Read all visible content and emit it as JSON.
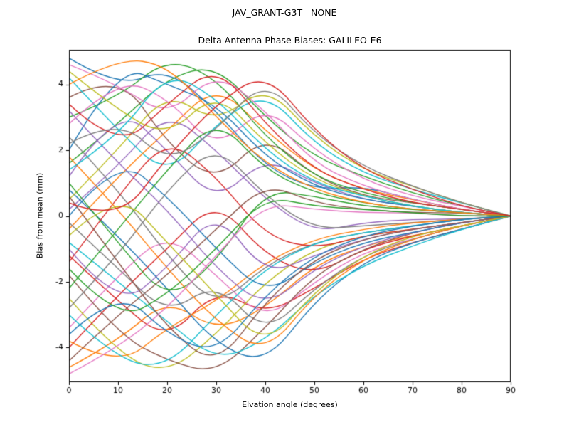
{
  "figure": {
    "suptitle": "JAV_GRANT-G3T   NONE",
    "title": "Delta Antenna Phase Biases: GALILEO-E6",
    "xlabel": "Elvation angle (degrees)",
    "ylabel": "Bias from mean (mm)"
  },
  "chart_data": {
    "type": "line",
    "suptitle": "JAV_GRANT-G3T   NONE",
    "title": "Delta Antenna Phase Biases: GALILEO-E6",
    "xlabel": "Elvation angle (degrees)",
    "ylabel": "Bias from mean (mm)",
    "xlim": [
      0,
      90
    ],
    "ylim": [
      -5.05,
      5.05
    ],
    "xticks": [
      0,
      10,
      20,
      30,
      40,
      50,
      60,
      70,
      80,
      90
    ],
    "yticks": [
      -4,
      -2,
      0,
      2,
      4
    ],
    "grid": false,
    "legend": "none",
    "x": [
      0,
      10,
      20,
      30,
      40,
      50,
      60,
      70,
      80,
      90
    ],
    "palette": [
      "#1f77b4",
      "#ff7f0e",
      "#2ca02c",
      "#d62728",
      "#9467bd",
      "#8c564b",
      "#e377c2",
      "#7f7f7f",
      "#bcbd22",
      "#17becf"
    ],
    "series": [
      [
        4.8,
        3.9,
        4.5,
        3.2,
        1.5,
        0.8,
        0.9,
        0.5,
        0.2,
        0
      ],
      [
        -4.6,
        -3.8,
        -2.5,
        -3.5,
        -2.8,
        -1.5,
        -0.9,
        -0.6,
        -0.3,
        0
      ],
      [
        1.6,
        2.8,
        4.2,
        4.6,
        3.0,
        1.8,
        1.2,
        0.7,
        0.3,
        0
      ],
      [
        -1.2,
        -2.6,
        -3.8,
        -2.2,
        -3.0,
        -2.2,
        -1.3,
        -0.8,
        -0.4,
        0
      ],
      [
        0.2,
        1.5,
        3.2,
        2.0,
        0.5,
        -0.5,
        -0.2,
        -0.1,
        -0.1,
        0
      ],
      [
        3.6,
        4.4,
        2.2,
        1.0,
        2.5,
        1.2,
        0.6,
        0.4,
        0.2,
        0
      ],
      [
        -3.4,
        -1.8,
        -0.5,
        -1.8,
        -3.2,
        -2.0,
        -1.1,
        -0.7,
        -0.3,
        0
      ],
      [
        2.4,
        0.8,
        -1.2,
        -2.8,
        -1.5,
        -0.8,
        -0.5,
        -0.3,
        -0.1,
        0
      ],
      [
        -2.5,
        -4.2,
        -4.8,
        -3.6,
        -2.0,
        -1.0,
        -0.6,
        -0.4,
        -0.2,
        0
      ],
      [
        4.2,
        2.6,
        1.2,
        2.8,
        3.8,
        2.2,
        1.3,
        0.8,
        0.4,
        0
      ],
      [
        0.8,
        -0.6,
        -2.2,
        -3.9,
        -4.5,
        -2.6,
        -1.4,
        -0.8,
        -0.4,
        0
      ],
      [
        -0.4,
        1.2,
        2.6,
        4.0,
        2.6,
        1.4,
        0.8,
        0.5,
        0.2,
        0
      ],
      [
        3.0,
        3.6,
        4.8,
        4.2,
        2.4,
        1.2,
        0.7,
        0.4,
        0.2,
        0
      ],
      [
        -4.0,
        -2.4,
        -1.0,
        0.5,
        -1.2,
        -1.8,
        -1.0,
        -0.6,
        -0.3,
        0
      ],
      [
        1.2,
        3.4,
        2.0,
        0.4,
        1.8,
        1.0,
        0.5,
        0.3,
        0.1,
        0
      ],
      [
        -1.8,
        -3.6,
        -4.4,
        -4.8,
        -3.4,
        -1.8,
        -1.0,
        -0.5,
        -0.2,
        0
      ],
      [
        4.6,
        4.0,
        3.0,
        4.4,
        3.2,
        1.6,
        0.9,
        0.5,
        0.2,
        0
      ],
      [
        -2.8,
        -1.2,
        0.8,
        2.2,
        0.6,
        -0.4,
        -0.3,
        -0.2,
        -0.1,
        0
      ],
      [
        0.5,
        2.0,
        3.8,
        2.8,
        4.0,
        2.4,
        1.4,
        0.9,
        0.4,
        0
      ],
      [
        -0.8,
        -2.0,
        -3.2,
        -4.4,
        -3.8,
        -2.4,
        -1.5,
        -0.9,
        -0.4,
        0
      ],
      [
        2.0,
        4.6,
        4.0,
        3.4,
        1.8,
        0.9,
        0.5,
        0.3,
        0.1,
        0
      ],
      [
        -3.8,
        -4.6,
        -3.4,
        -2.6,
        -1.4,
        -0.7,
        -0.4,
        -0.2,
        -0.1,
        0
      ],
      [
        1.0,
        -0.8,
        -2.6,
        -1.4,
        0.8,
        0.6,
        0.3,
        0.2,
        0.1,
        0
      ],
      [
        -1.4,
        0.6,
        2.4,
        1.2,
        -0.6,
        -1.0,
        -0.6,
        -0.4,
        -0.2,
        0
      ],
      [
        3.2,
        1.6,
        0.2,
        -1.6,
        -2.8,
        -1.6,
        -0.9,
        -0.5,
        -0.2,
        0
      ],
      [
        -4.4,
        -3.0,
        -1.8,
        -0.4,
        1.0,
        0.4,
        0.2,
        0.1,
        0.1,
        0
      ],
      [
        2.8,
        4.2,
        3.6,
        2.0,
        3.4,
        2.0,
        1.1,
        0.6,
        0.3,
        0
      ],
      [
        -0.2,
        -1.6,
        -3.0,
        -2.0,
        -3.6,
        -2.2,
        -1.2,
        -0.7,
        -0.3,
        0
      ],
      [
        4.4,
        3.2,
        2.4,
        3.8,
        2.2,
        1.1,
        0.6,
        0.3,
        0.1,
        0
      ],
      [
        -3.0,
        -4.4,
        -4.6,
        -3.0,
        -1.6,
        -0.8,
        -0.5,
        -0.3,
        -0.1,
        0
      ],
      [
        0.0,
        1.8,
        0.6,
        -1.0,
        -2.4,
        -1.4,
        -0.8,
        -0.5,
        -0.2,
        0
      ],
      [
        1.8,
        0.2,
        -1.6,
        -3.2,
        -4.2,
        -2.4,
        -1.3,
        -0.7,
        -0.3,
        0
      ],
      [
        -2.2,
        -0.4,
        1.4,
        3.0,
        1.4,
        0.7,
        0.4,
        0.2,
        0.1,
        0
      ],
      [
        3.4,
        2.0,
        3.4,
        4.6,
        2.8,
        1.4,
        0.8,
        0.4,
        0.2,
        0
      ],
      [
        -1.0,
        -2.8,
        -1.6,
        0.2,
        -1.8,
        -1.2,
        -0.7,
        -0.4,
        -0.2,
        0
      ],
      [
        0.6,
        -1.4,
        -3.4,
        -4.6,
        -2.6,
        -1.3,
        -0.7,
        -0.4,
        -0.2,
        0
      ],
      [
        -4.8,
        -4.0,
        -2.8,
        -1.2,
        0.4,
        0.2,
        0.1,
        0.1,
        0.0,
        0
      ],
      [
        2.2,
        3.0,
        1.6,
        2.6,
        4.2,
        2.5,
        1.5,
        0.9,
        0.4,
        0
      ],
      [
        -0.6,
        0.8,
        -0.8,
        -2.4,
        -4.0,
        -2.3,
        -1.2,
        -0.6,
        -0.3,
        0
      ],
      [
        1.4,
        2.4,
        4.4,
        3.6,
        2.0,
        1.0,
        0.6,
        0.3,
        0.1,
        0
      ],
      [
        -3.6,
        -2.2,
        -3.6,
        -4.2,
        -2.4,
        -1.2,
        -0.6,
        -0.3,
        -0.1,
        0
      ],
      [
        4.0,
        4.8,
        4.6,
        3.0,
        1.6,
        0.8,
        0.4,
        0.2,
        0.1,
        0
      ],
      [
        -1.6,
        -3.2,
        -2.4,
        -1.0,
        0.6,
        0.3,
        0.2,
        0.1,
        0.0,
        0
      ],
      [
        0.4,
        -0.2,
        1.8,
        3.4,
        4.4,
        2.6,
        1.4,
        0.8,
        0.3,
        0
      ]
    ]
  }
}
